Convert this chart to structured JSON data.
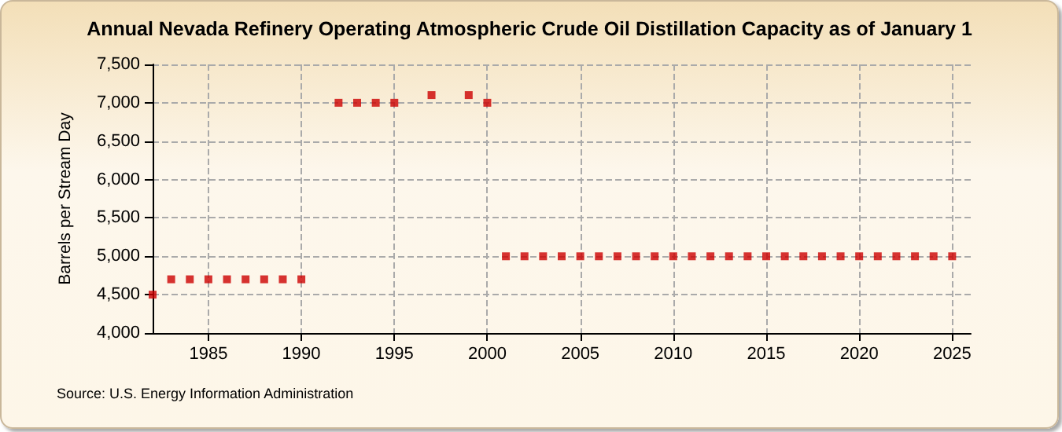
{
  "chart_data": {
    "type": "scatter",
    "title": "Annual Nevada Refinery Operating Atmospheric Crude Oil Distillation Capacity as of January 1",
    "ylabel": "Barrels per Stream Day",
    "annotations": [
      "Source: U.S. Energy Information Administration"
    ],
    "x": [
      1982,
      1983,
      1984,
      1985,
      1986,
      1987,
      1988,
      1989,
      1990,
      1991,
      1992,
      1993,
      1994,
      1995,
      1996,
      1997,
      1998,
      1999,
      2000,
      2001,
      2002,
      2003,
      2004,
      2005,
      2006,
      2007,
      2008,
      2009,
      2010,
      2011,
      2012,
      2013,
      2014,
      2015,
      2016,
      2017,
      2018,
      2019,
      2020,
      2021,
      2022,
      2023,
      2024,
      2025
    ],
    "series": [
      {
        "color": "#cc0000",
        "values": [
          4500,
          4700,
          4700,
          4700,
          4700,
          4700,
          4700,
          4700,
          4700,
          null,
          7000,
          7000,
          7000,
          7000,
          null,
          7100,
          null,
          7100,
          7000,
          5000,
          5000,
          5000,
          5000,
          5000,
          5000,
          5000,
          5000,
          5000,
          5000,
          5000,
          5000,
          5000,
          5000,
          5000,
          5000,
          5000,
          5000,
          5000,
          5000,
          5000,
          5000,
          5000,
          5000,
          5000
        ]
      }
    ],
    "xlim": [
      1982,
      2026
    ],
    "xticks": [
      1985,
      1990,
      1995,
      2000,
      2005,
      2010,
      2015,
      2020,
      2025
    ],
    "ylim": [
      4000,
      7500
    ],
    "yticks": [
      {
        "value": 4000,
        "label": "4,000"
      },
      {
        "value": 4500,
        "label": "4,500"
      },
      {
        "value": 5000,
        "label": "5,000"
      },
      {
        "value": 5500,
        "label": "5,500"
      },
      {
        "value": 6000,
        "label": "6,000"
      },
      {
        "value": 6500,
        "label": "6,500"
      },
      {
        "value": 7000,
        "label": "7,000"
      },
      {
        "value": 7500,
        "label": "7,500"
      }
    ],
    "grid": true,
    "marker": "square"
  }
}
